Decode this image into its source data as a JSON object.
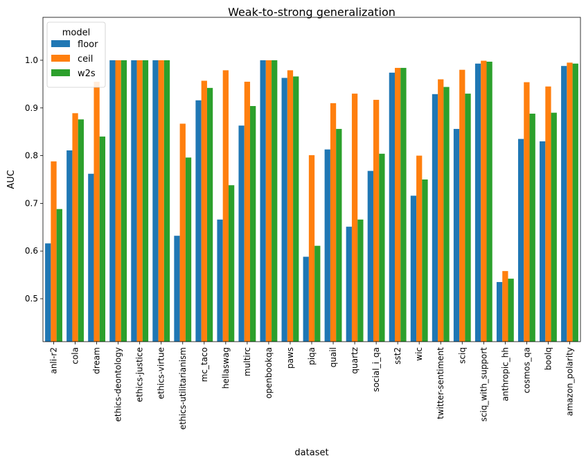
{
  "chart_data": {
    "type": "bar",
    "title": "Weak-to-strong generalization",
    "xlabel": "dataset",
    "ylabel": "AUC",
    "ylim": [
      0.41,
      1.09
    ],
    "yticks": [
      "0.5",
      "0.6",
      "0.7",
      "0.8",
      "0.9",
      "1.0"
    ],
    "ytick_values": [
      0.5,
      0.6,
      0.7,
      0.8,
      0.9,
      1.0
    ],
    "grid": false,
    "legend": {
      "title": "model",
      "placement": "top-left"
    },
    "categories": [
      "anli-r2",
      "cola",
      "dream",
      "ethics-deontology",
      "ethics-justice",
      "ethics-virtue",
      "ethics-utilitarianism",
      "mc_taco",
      "hellaswag",
      "multirc",
      "openbookqa",
      "paws",
      "piqa",
      "quail",
      "quartz",
      "social_i_qa",
      "sst2",
      "wic",
      "twitter-sentiment",
      "sciq",
      "sciq_with_support",
      "anthropic_hh",
      "cosmos_qa",
      "boolq",
      "amazon_polarity"
    ],
    "series": [
      {
        "name": "floor",
        "color": "#1f77b4",
        "values": [
          0.616,
          0.811,
          0.762,
          1.0,
          1.0,
          1.0,
          0.632,
          0.916,
          0.666,
          0.863,
          1.0,
          0.963,
          0.588,
          0.813,
          0.651,
          0.768,
          0.974,
          0.716,
          0.929,
          0.856,
          0.993,
          0.535,
          0.835,
          0.83,
          0.988
        ]
      },
      {
        "name": "ceil",
        "color": "#ff7f0e",
        "values": [
          0.788,
          0.889,
          0.955,
          1.0,
          1.0,
          1.0,
          0.867,
          0.957,
          0.979,
          0.955,
          1.0,
          0.979,
          0.801,
          0.91,
          0.93,
          0.917,
          0.984,
          0.8,
          0.96,
          0.98,
          0.999,
          0.558,
          0.954,
          0.945,
          0.995
        ]
      },
      {
        "name": "w2s",
        "color": "#2ca02c",
        "values": [
          0.688,
          0.876,
          0.84,
          1.0,
          1.0,
          1.0,
          0.796,
          0.942,
          0.738,
          0.904,
          1.0,
          0.966,
          0.611,
          0.856,
          0.666,
          0.804,
          0.984,
          0.75,
          0.944,
          0.93,
          0.997,
          0.542,
          0.888,
          0.89,
          0.993
        ]
      }
    ]
  }
}
